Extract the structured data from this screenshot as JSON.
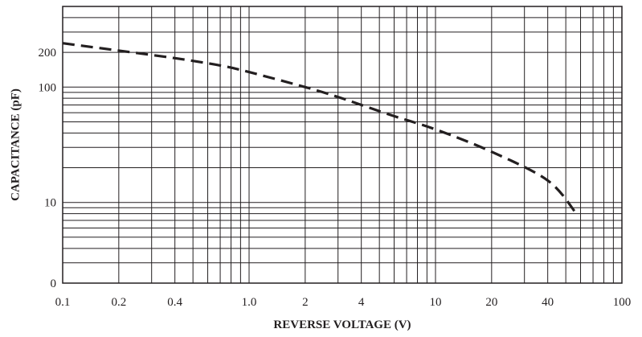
{
  "chart_data": {
    "type": "line",
    "title": "",
    "xlabel": "REVERSE VOLTAGE (V)",
    "ylabel": "CAPACITANCE (pF)",
    "x_scale": "log",
    "x_range": [
      0.1,
      100
    ],
    "x_ticks": [
      0.1,
      0.2,
      0.4,
      1.0,
      2,
      4,
      10,
      20,
      40,
      100
    ],
    "x_tick_labels": [
      "0.1",
      "0.2",
      "0.4",
      "1.0",
      "2",
      "4",
      "10",
      "20",
      "40",
      "100"
    ],
    "y_scale": "log",
    "y_range": [
      2,
      500
    ],
    "y_ticks": [
      10,
      100,
      200
    ],
    "y_tick_labels": [
      "10",
      "100",
      "200"
    ],
    "y_origin_label": "0",
    "grid": true,
    "series": [
      {
        "line_style": "dashed",
        "color": "#231f20",
        "x": [
          0.1,
          0.2,
          0.4,
          0.7,
          1.0,
          2,
          3,
          4,
          6,
          10,
          20,
          40,
          57
        ],
        "y": [
          240,
          207,
          178,
          154,
          135,
          100,
          82,
          70,
          56,
          43,
          27.5,
          15.5,
          8
        ]
      }
    ]
  }
}
